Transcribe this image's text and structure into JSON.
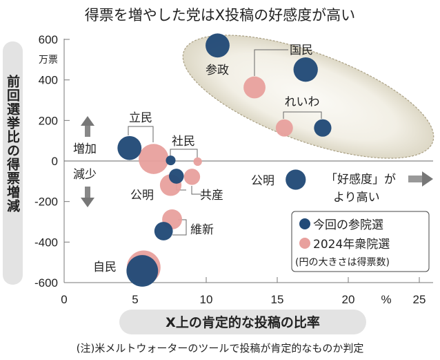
{
  "chart_data": {
    "type": "scatter",
    "title": "得票を増やした党はX投稿の好感度が高い",
    "xlabel": "X上の肯定的な投稿の比率",
    "xunit": "%",
    "ylabel": "前回選挙比の得票増減",
    "yunit": "万票",
    "xlim": [
      0,
      26.5
    ],
    "ylim": [
      -600,
      600
    ],
    "xticks": [
      "0",
      "5",
      "10",
      "15",
      "20",
      "25"
    ],
    "yticks": [
      "600",
      "400",
      "200",
      "0",
      "-200",
      "-400",
      "-600"
    ],
    "grid": false,
    "size_meaning": "得票数（万票）",
    "series": [
      {
        "name": "2024年衆院選",
        "color": "#e8a09d",
        "points": [
          {
            "party": "国民",
            "x": 13.4,
            "y": 363,
            "votes": 617
          },
          {
            "party": "れいわ",
            "x": 15.5,
            "y": 163,
            "votes": 380
          },
          {
            "party": "立民",
            "x": 6.3,
            "y": 10,
            "votes": 1156
          },
          {
            "party": "社民",
            "x": 9.4,
            "y": -3,
            "votes": 93
          },
          {
            "party": "共産",
            "x": 9.0,
            "y": -78,
            "votes": 336
          },
          {
            "party": "公明",
            "x": 7.5,
            "y": -119,
            "votes": 596
          },
          {
            "party": "維新",
            "x": 7.6,
            "y": -288,
            "votes": 510
          },
          {
            "party": "自民",
            "x": 5.6,
            "y": -525,
            "votes": 1458
          }
        ]
      },
      {
        "name": "今回の参院選",
        "color": "#234b78",
        "points": [
          {
            "party": "参政",
            "x": 10.8,
            "y": 570,
            "votes": 742
          },
          {
            "party": "国民",
            "x": 17.0,
            "y": 451,
            "votes": 762
          },
          {
            "party": "れいわ",
            "x": 18.2,
            "y": 163,
            "votes": 388
          },
          {
            "party": "立民",
            "x": 4.6,
            "y": 64,
            "votes": 740
          },
          {
            "party": "社民",
            "x": 7.5,
            "y": 3,
            "votes": 121
          },
          {
            "party": "共産",
            "x": 7.9,
            "y": -75,
            "votes": 286
          },
          {
            "party": "公明",
            "x": 16.3,
            "y": -92,
            "votes": 521
          },
          {
            "party": "維新",
            "x": 7.0,
            "y": -346,
            "votes": 437
          },
          {
            "party": "自民",
            "x": 5.5,
            "y": -542,
            "votes": 1280
          }
        ]
      }
    ],
    "party_labels": {
      "sansei": "参政",
      "kokumin": "国民",
      "reiwa": "れいわ",
      "rikken": "立民",
      "shamin": "社民",
      "komei_left": "公明",
      "kyosan": "共産",
      "ishin": "維新",
      "jimin": "自民",
      "komei_right": "公明"
    },
    "annotations": {
      "increase": "増加",
      "decrease": "減少",
      "favor_line1": "「好感度」が",
      "favor_line2": "より高い"
    },
    "legend": {
      "placement": "bottom-right",
      "items": [
        "今回の参院選",
        "2024年衆院選"
      ],
      "note": "(円の大きさは得票数)"
    },
    "footnote": "(注)米メルトウォーターのツールで投稿が肯定的なものか判定"
  }
}
